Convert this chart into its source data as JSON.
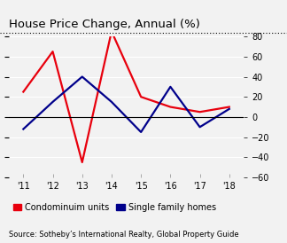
{
  "title": "House Price Change, Annual (%)",
  "years": [
    2011,
    2012,
    2013,
    2014,
    2015,
    2016,
    2017,
    2018
  ],
  "x_labels": [
    "'11",
    "'12",
    "'13",
    "'14",
    "'15",
    "'16",
    "'17",
    "'18"
  ],
  "condo": [
    25,
    65,
    -45,
    85,
    20,
    10,
    5,
    10
  ],
  "sfh": [
    -12,
    15,
    40,
    15,
    -15,
    30,
    -10,
    8
  ],
  "condo_color": "#e8000d",
  "sfh_color": "#00008b",
  "ylim": [
    -60,
    80
  ],
  "yticks": [
    -60,
    -40,
    -20,
    0,
    20,
    40,
    60,
    80
  ],
  "legend_condo": "Condominuim units",
  "legend_sfh": "Single family homes",
  "source": "Source: Sotheby’s International Realty, Global Property Guide",
  "bg_color": "#f2f2f2",
  "plot_bg": "#f2f2f2",
  "title_fontsize": 9.5,
  "axis_fontsize": 7,
  "source_fontsize": 6,
  "legend_fontsize": 7,
  "line_width": 1.6
}
